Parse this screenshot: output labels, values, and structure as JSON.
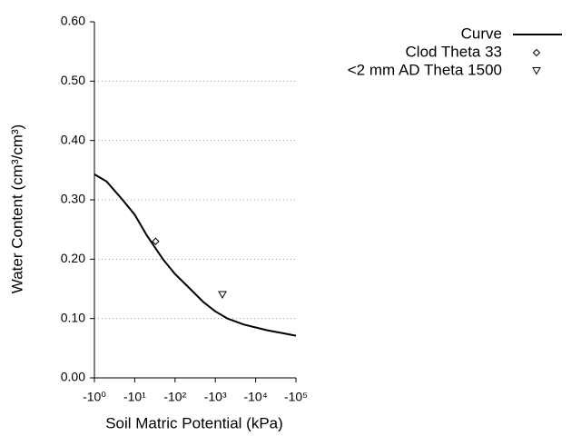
{
  "chart_data": {
    "type": "line",
    "xlabel": "Soil Matric Potential (kPa)",
    "ylabel": "Water Content (cm³/cm³)",
    "xlog": true,
    "xlim": [
      -1,
      -100000
    ],
    "xticks": [
      {
        "value": -1,
        "label": "-10⁰"
      },
      {
        "value": -10,
        "label": "-10¹"
      },
      {
        "value": -100,
        "label": "-10²"
      },
      {
        "value": -1000,
        "label": "-10³"
      },
      {
        "value": -10000,
        "label": "-10⁴"
      },
      {
        "value": -100000,
        "label": "-10⁵"
      }
    ],
    "ylim": [
      0,
      0.6
    ],
    "yticks": [
      {
        "value": 0,
        "label": "0.00"
      },
      {
        "value": 0.1,
        "label": "0.10"
      },
      {
        "value": 0.2,
        "label": "0.20"
      },
      {
        "value": 0.3,
        "label": "0.30"
      },
      {
        "value": 0.4,
        "label": "0.40"
      },
      {
        "value": 0.5,
        "label": "0.50"
      },
      {
        "value": 0.6,
        "label": "0.60"
      }
    ],
    "grid": true,
    "legend": "upper right",
    "series": [
      {
        "name": "Curve",
        "color": "#000000",
        "marker": "none",
        "x": [
          -1,
          -2,
          -5,
          -10,
          -20,
          -50,
          -100,
          -200,
          -500,
          -1000,
          -2000,
          -5000,
          -10000,
          -20000,
          -50000,
          -100000
        ],
        "values": [
          0.343,
          0.331,
          0.3,
          0.275,
          0.24,
          0.2,
          0.175,
          0.155,
          0.128,
          0.112,
          0.1,
          0.09,
          0.085,
          0.08,
          0.075,
          0.071
        ]
      },
      {
        "name": "Clod Theta 33",
        "color": "#000000",
        "marker": "diamond",
        "x": [
          -33
        ],
        "values": [
          0.23
        ]
      },
      {
        "name": "<2 mm AD Theta 1500",
        "color": "#000000",
        "marker": "triangle",
        "x": [
          -1500
        ],
        "values": [
          0.14
        ]
      }
    ]
  }
}
